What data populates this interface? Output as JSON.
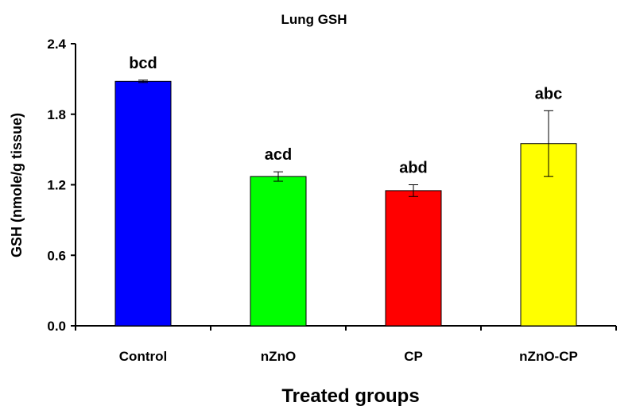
{
  "chart_data": {
    "type": "bar",
    "title": "Lung GSH",
    "xlabel": "Treated groups",
    "ylabel": "GSH (nmole/g tissue)",
    "ylim": [
      0,
      2.4
    ],
    "yticks": [
      "0.0",
      "0.6",
      "1.2",
      "1.8",
      "2.4"
    ],
    "categories": [
      "Control",
      "nZnO",
      "CP",
      "nZnO-CP"
    ],
    "values": [
      2.08,
      1.27,
      1.15,
      1.55
    ],
    "errors": [
      0.01,
      0.04,
      0.05,
      0.28
    ],
    "annotations": [
      "bcd",
      "acd",
      "abd",
      "abc"
    ],
    "colors": [
      "#0000ff",
      "#00ff00",
      "#ff0000",
      "#ffff00"
    ],
    "grid": false,
    "legend": "none"
  }
}
